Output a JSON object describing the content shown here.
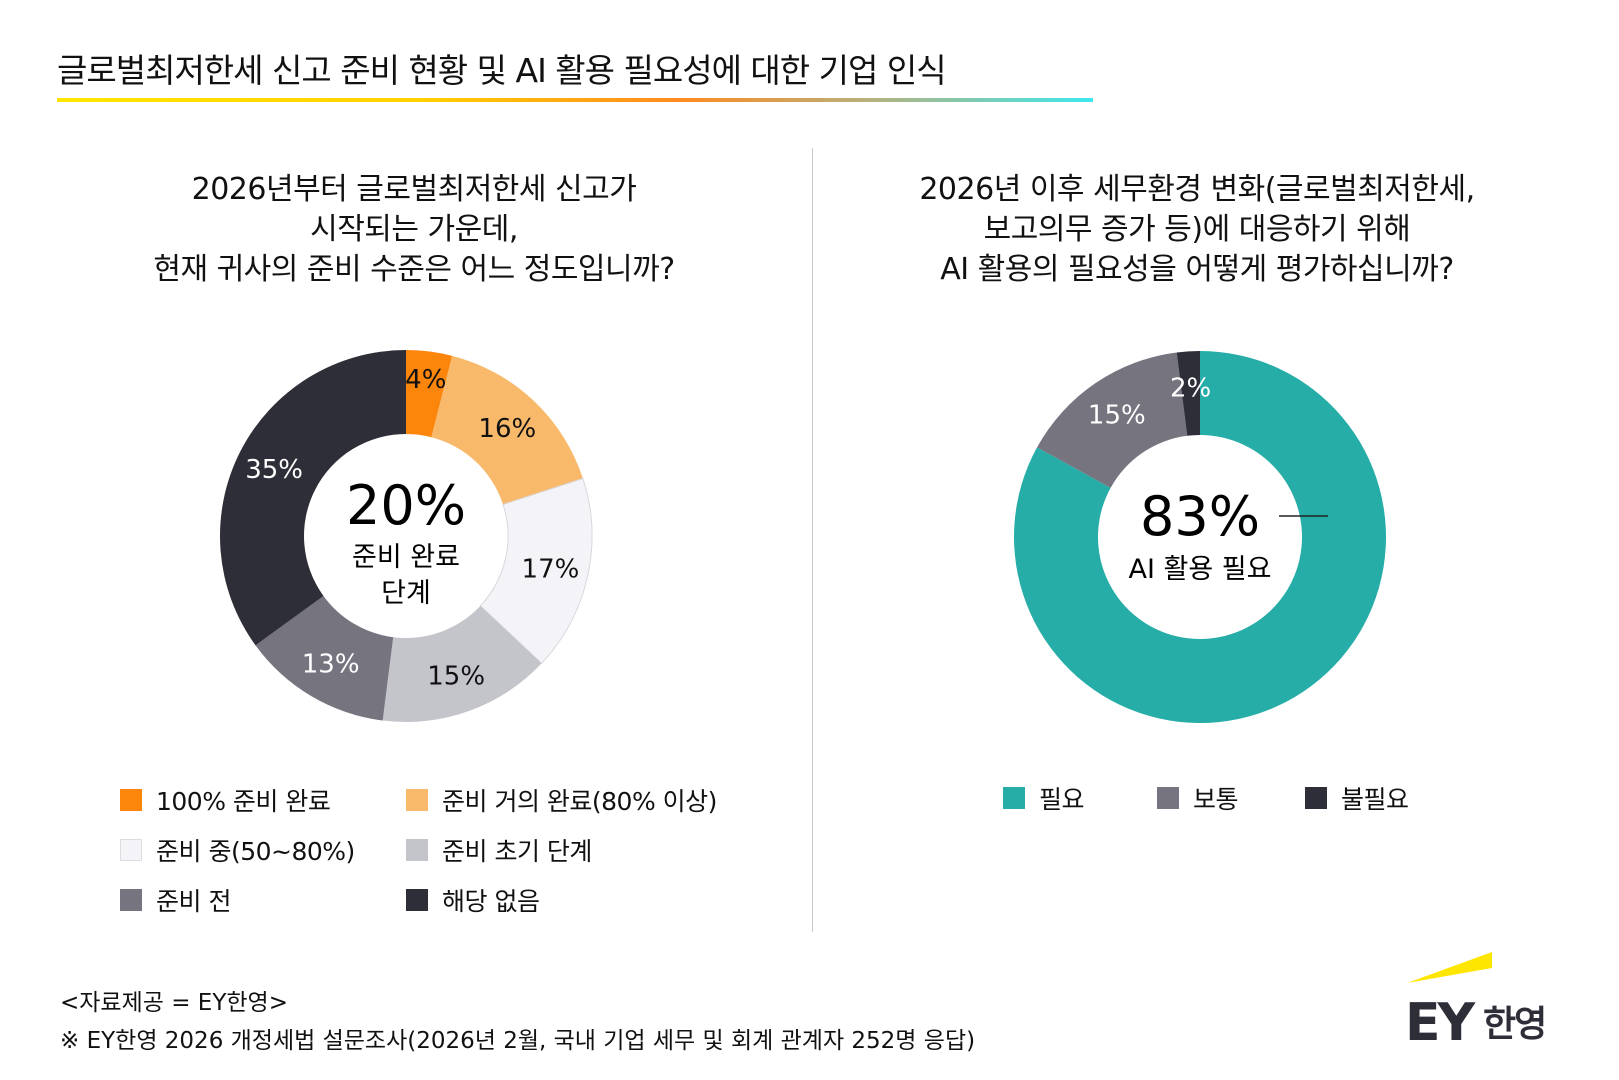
{
  "header": {
    "title": "글로벌최저한세 신고 준비 현황 및 AI 활용 필요성에 대한 기업 인식"
  },
  "colors": {
    "accent_yellow": "#FFE600"
  },
  "chart_data": [
    {
      "type": "pie",
      "style": "donut",
      "question": [
        "2026년부터 글로벌최저한세 신고가",
        "시작되는 가운데,",
        "현재 귀사의 준비 수준은 어느 정도입니까?"
      ],
      "center_value": "20%",
      "center_label": [
        "준비 완료",
        "단계"
      ],
      "categories": [
        "100% 준비 완료",
        "준비 거의 완료(80% 이상)",
        "준비 중(50~80%)",
        "준비 초기 단계",
        "준비 전",
        "해당 없음"
      ],
      "values": [
        4,
        16,
        17,
        15,
        13,
        35
      ],
      "labels": [
        "4%",
        "16%",
        "17%",
        "15%",
        "13%",
        "35%"
      ],
      "colors": [
        "#FC850C",
        "#F8B96A",
        "#F4F4F8",
        "#C4C4CB",
        "#75747F",
        "#2E2E38"
      ],
      "label_colors": [
        "#111111",
        "#111111",
        "#111111",
        "#111111",
        "#FFFFFF",
        "#FFFFFF"
      ],
      "legend_placement": "bottom"
    },
    {
      "type": "pie",
      "style": "donut",
      "question": [
        "2026년 이후 세무환경 변화(글로벌최저한세,",
        "보고의무 증가 등)에 대응하기 위해",
        "AI 활용의 필요성을 어떻게 평가하십니까?"
      ],
      "center_value": "83%",
      "center_label": [
        "AI 활용 필요"
      ],
      "categories": [
        "필요",
        "보통",
        "불필요"
      ],
      "values": [
        83,
        15,
        2
      ],
      "labels": [
        "83%",
        "15%",
        "2%"
      ],
      "colors": [
        "#27ADA8",
        "#75747F",
        "#2E2E38"
      ],
      "label_colors": [
        "#FFFFFF",
        "#FFFFFF",
        "#FFFFFF"
      ],
      "legend_placement": "bottom"
    }
  ],
  "footer": {
    "source": "<자료제공 = EY한영>",
    "note": "※ EY한영 2026 개정세법 설문조사(2026년 2월, 국내 기업 세무 및 회계 관계자 252명 응답)"
  },
  "logo": {
    "text": "EY한영"
  }
}
